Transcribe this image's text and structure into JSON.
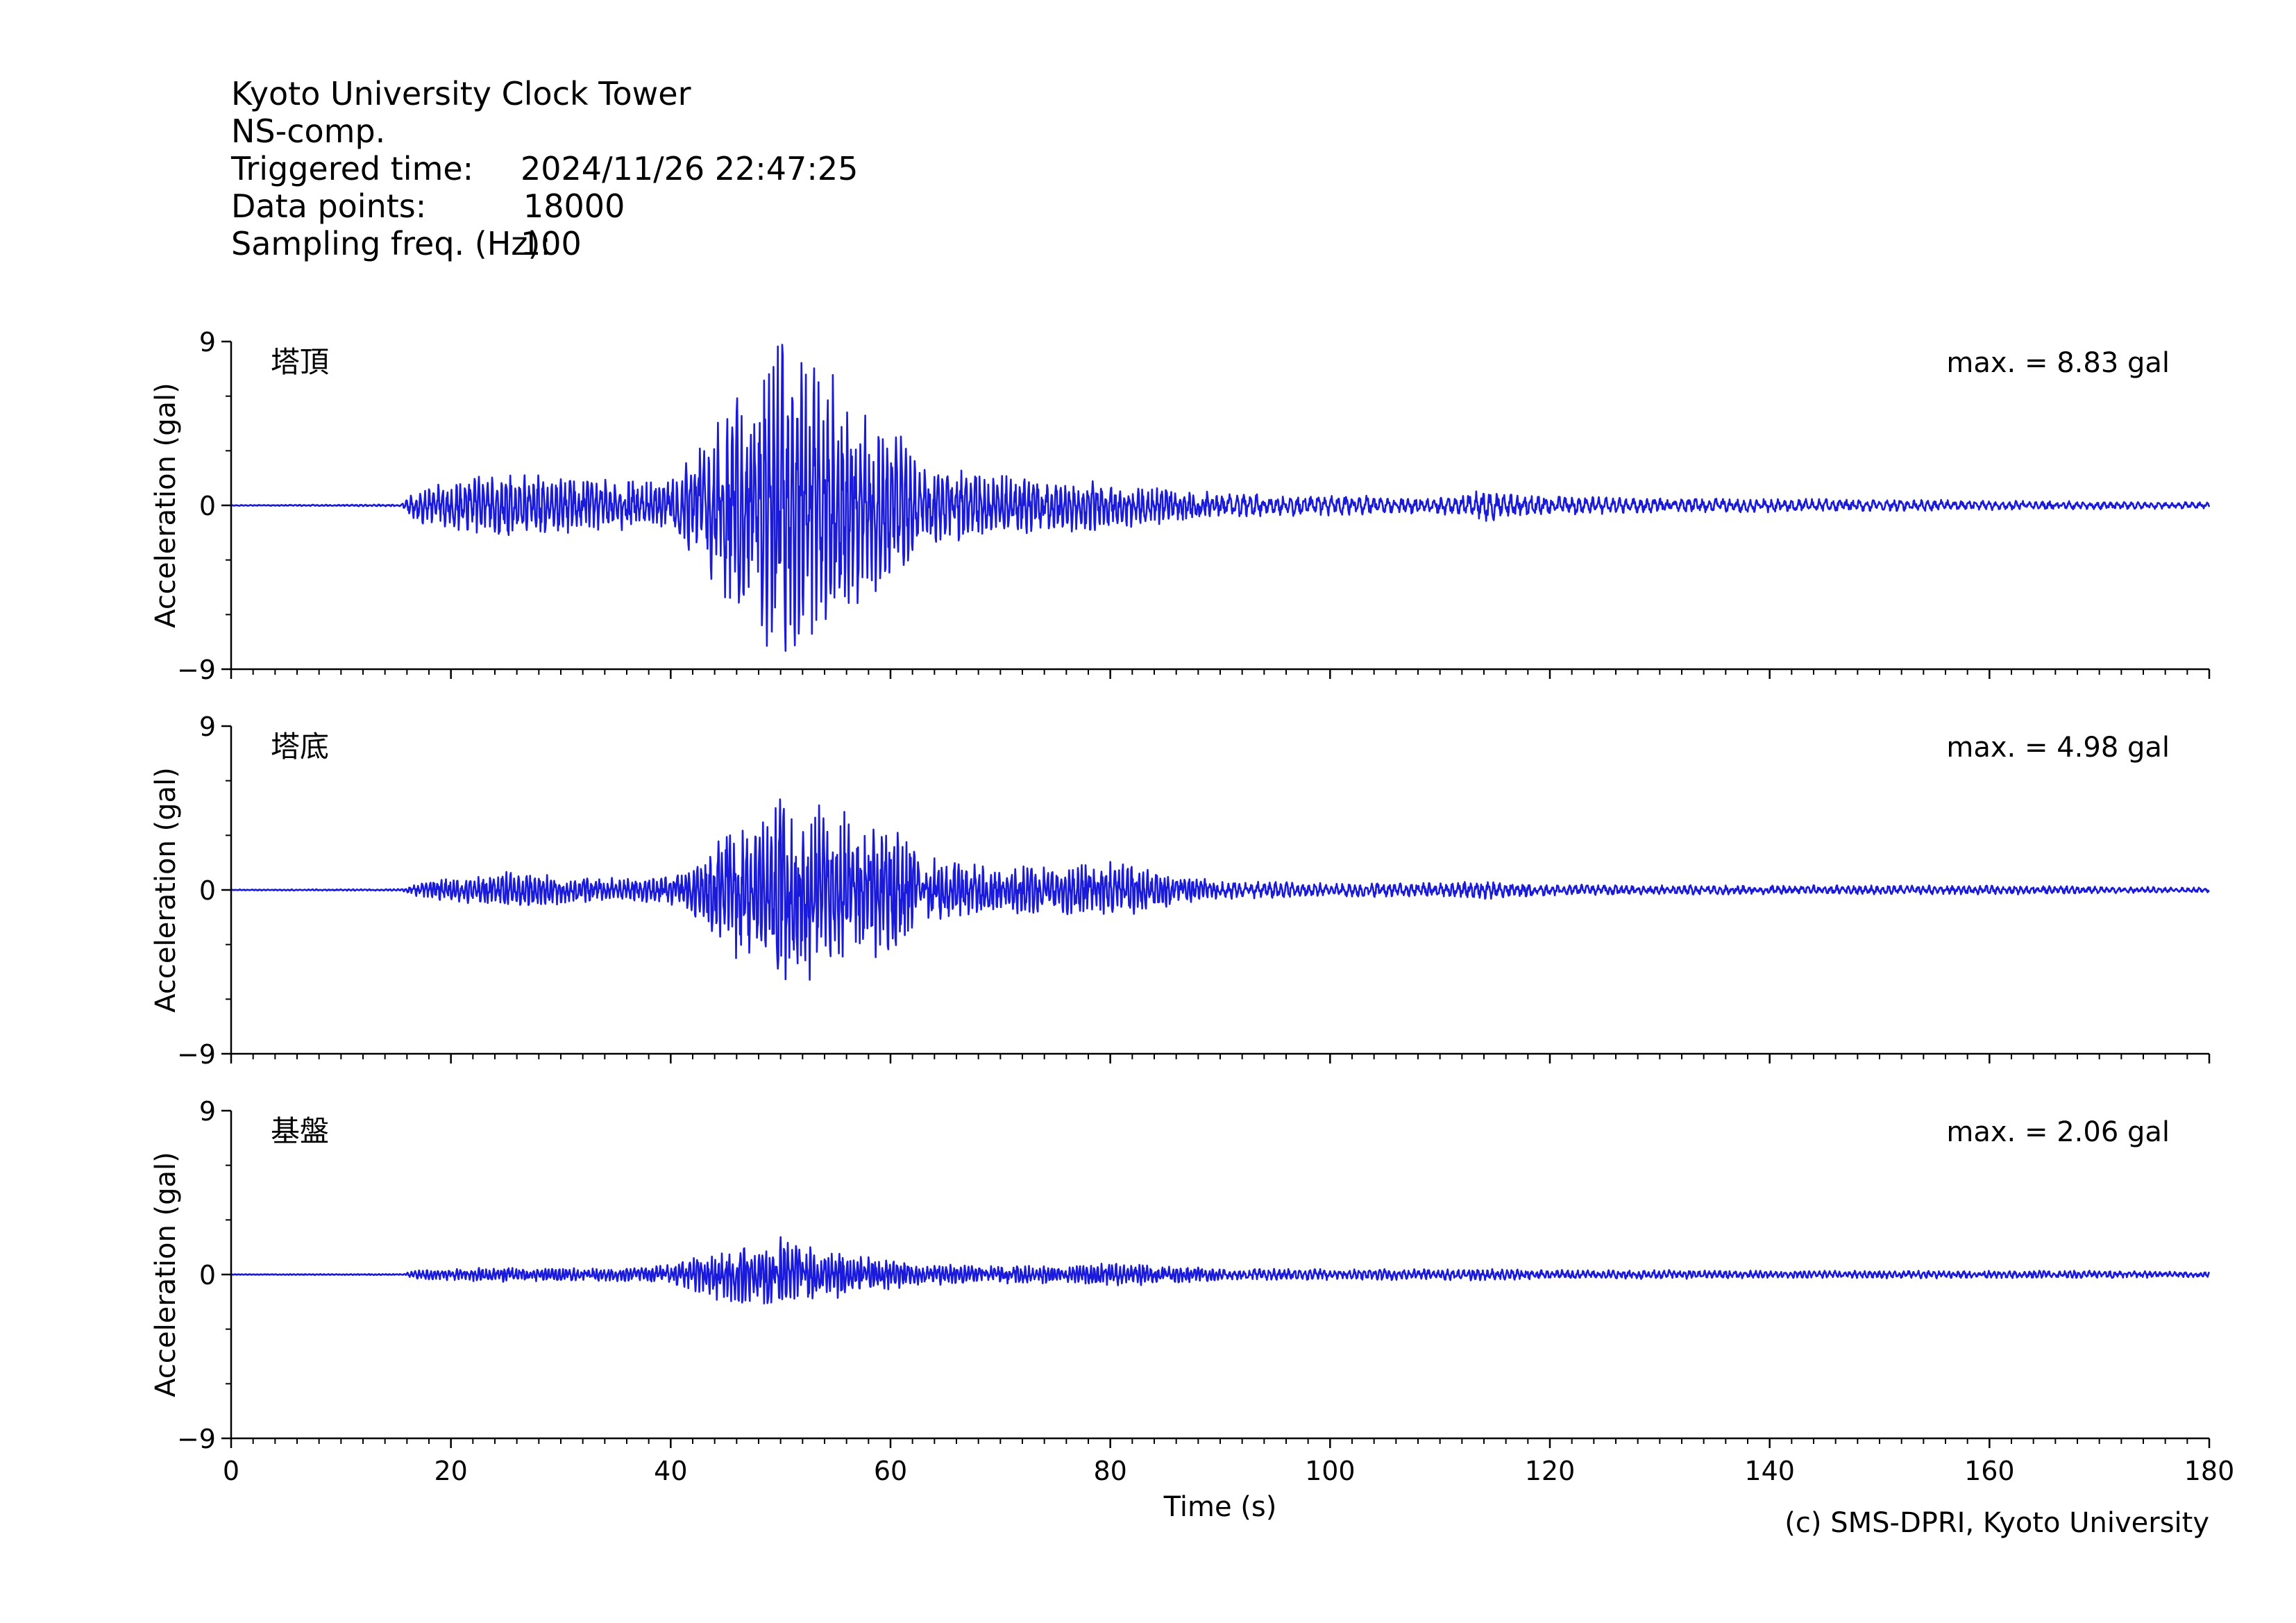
{
  "header": {
    "station": "Kyoto University Clock Tower",
    "component": "NS-comp.",
    "triggered_label": "Triggered time:",
    "triggered_value": "2024/11/26 22:47:25",
    "points_label": "Data points:",
    "points_value": "18000",
    "freq_label": "Sampling freq. (Hz):",
    "freq_value": "100"
  },
  "credit": "(c) SMS-DPRI, Kyoto University",
  "colors": {
    "trace": "#1a1adc",
    "axis": "#000000"
  },
  "chart_data": [
    {
      "type": "line",
      "panel_label": "塔頂",
      "max_label": "max. = 8.83 gal",
      "xlabel": "",
      "ylabel": "Acceleration (gal)",
      "xlim": [
        0,
        180
      ],
      "ylim": [
        -9,
        9
      ],
      "yticks": [
        "9",
        "0",
        "−9"
      ],
      "xticks": [],
      "max_abs": 8.83,
      "envelope": {
        "t": [
          0,
          15.5,
          17,
          20,
          25,
          30,
          35,
          40,
          43,
          45,
          48,
          50,
          51,
          54,
          57,
          60,
          63,
          66,
          70,
          75,
          80,
          85,
          90,
          100,
          110,
          114,
          120,
          130,
          140,
          150,
          160,
          170,
          180
        ],
        "amp": [
          0.02,
          0.05,
          0.9,
          1.3,
          1.6,
          1.4,
          1.3,
          1.2,
          3.2,
          5.5,
          6.0,
          8.83,
          8.0,
          7.0,
          5.0,
          4.0,
          2.0,
          1.8,
          1.5,
          1.3,
          1.2,
          0.9,
          0.6,
          0.5,
          0.45,
          0.8,
          0.5,
          0.35,
          0.35,
          0.3,
          0.25,
          0.2,
          0.15
        ]
      }
    },
    {
      "type": "line",
      "panel_label": "塔底",
      "max_label": "max. = 4.98 gal",
      "xlabel": "",
      "ylabel": "Acceleration (gal)",
      "xlim": [
        0,
        180
      ],
      "ylim": [
        -9,
        9
      ],
      "yticks": [
        "9",
        "0",
        "−9"
      ],
      "xticks": [],
      "max_abs": 4.98,
      "envelope": {
        "t": [
          0,
          15.5,
          17,
          20,
          25,
          30,
          35,
          40,
          43,
          45,
          48,
          50,
          51,
          54,
          57,
          60,
          63,
          66,
          70,
          75,
          80,
          85,
          90,
          100,
          110,
          114,
          120,
          130,
          140,
          150,
          160,
          170,
          180
        ],
        "amp": [
          0.02,
          0.04,
          0.3,
          0.5,
          0.8,
          0.6,
          0.5,
          0.6,
          1.5,
          3.0,
          3.0,
          4.98,
          3.5,
          4.0,
          3.0,
          3.0,
          1.5,
          1.2,
          1.0,
          1.0,
          1.2,
          0.8,
          0.4,
          0.3,
          0.3,
          0.4,
          0.25,
          0.2,
          0.2,
          0.2,
          0.2,
          0.15,
          0.1
        ]
      }
    },
    {
      "type": "line",
      "panel_label": "基盤",
      "max_label": "max. = 2.06 gal",
      "xlabel": "Time (s)",
      "ylabel": "Acceleration (gal)",
      "xlim": [
        0,
        180
      ],
      "ylim": [
        -9,
        9
      ],
      "yticks": [
        "9",
        "0",
        "−9"
      ],
      "xticks": [
        "0",
        "20",
        "40",
        "60",
        "80",
        "100",
        "120",
        "140",
        "160",
        "180"
      ],
      "max_abs": 2.06,
      "envelope": {
        "t": [
          0,
          15.5,
          17,
          20,
          25,
          30,
          35,
          40,
          43,
          45,
          48,
          50,
          51,
          54,
          57,
          60,
          63,
          66,
          70,
          75,
          80,
          85,
          90,
          100,
          110,
          114,
          120,
          130,
          140,
          150,
          160,
          170,
          180
        ],
        "amp": [
          0.02,
          0.03,
          0.25,
          0.3,
          0.4,
          0.35,
          0.35,
          0.5,
          1.0,
          1.5,
          1.5,
          2.06,
          1.6,
          1.4,
          1.0,
          0.8,
          0.6,
          0.5,
          0.5,
          0.5,
          0.6,
          0.5,
          0.3,
          0.3,
          0.3,
          0.3,
          0.25,
          0.25,
          0.2,
          0.2,
          0.2,
          0.2,
          0.15
        ]
      }
    }
  ]
}
